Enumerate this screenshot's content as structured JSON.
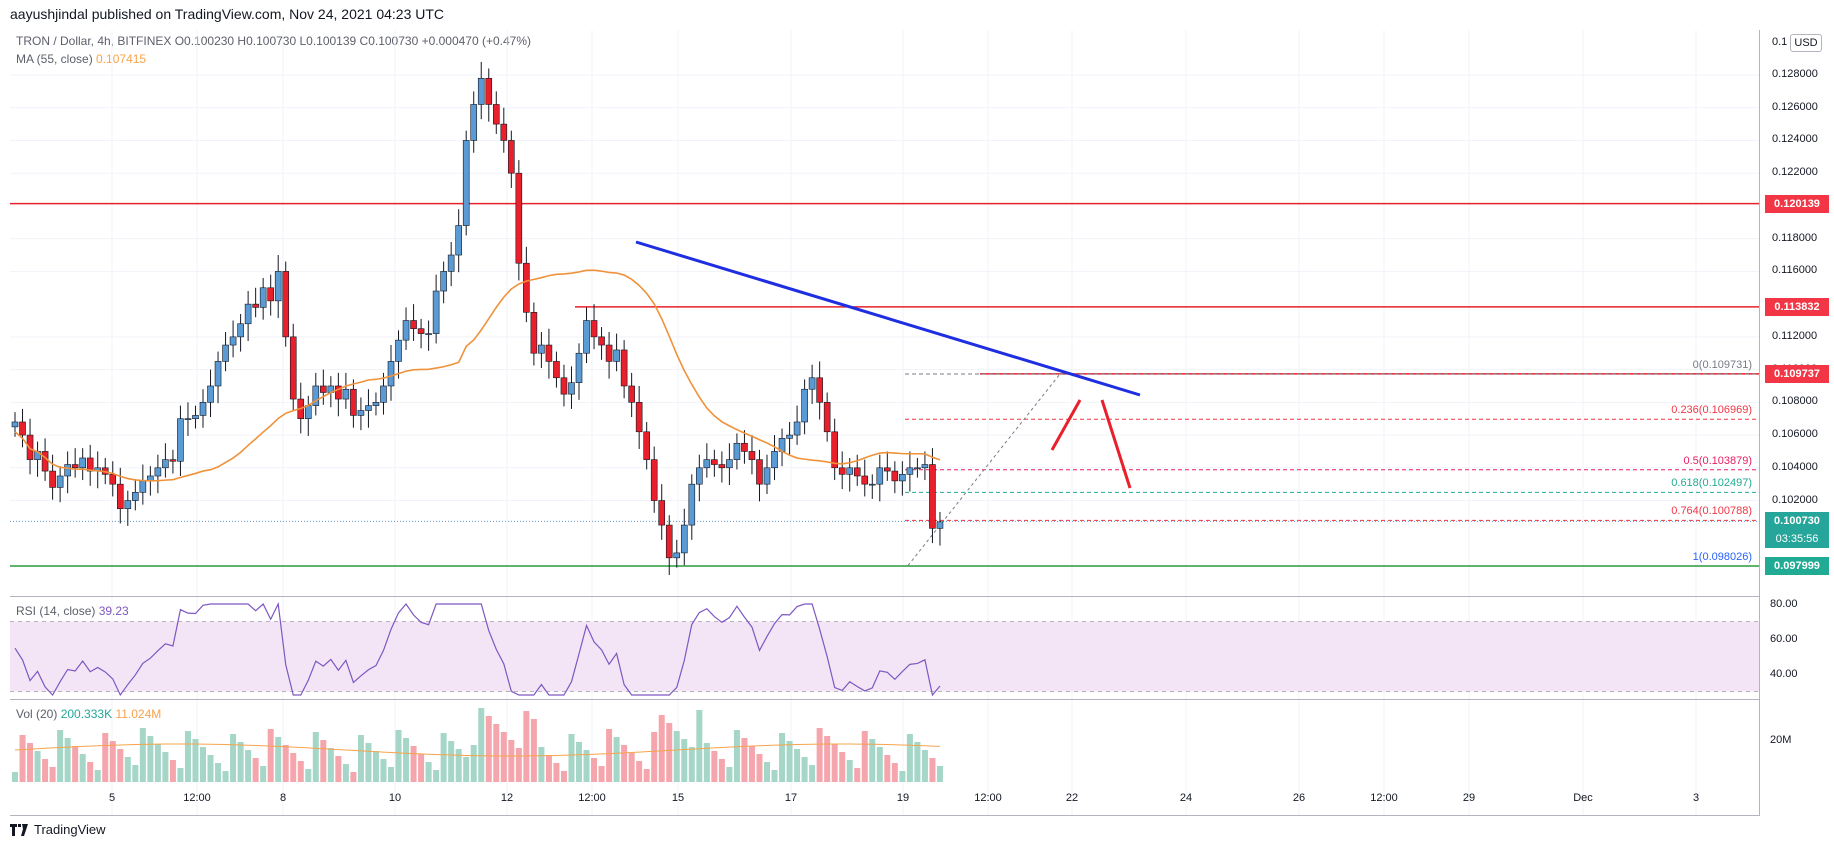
{
  "header": {
    "publish_line": "aayushjindal published on TradingView.com, Nov 24, 2021 04:23 UTC",
    "symbol_line": "TRON / Dollar, 4h, BITFINEX  O0.100230  H0.100730  L0.100139  C0.100730  +0.000470 (+0.47%)",
    "ma_label": "MA (55, close)",
    "ma_value": "0.107415",
    "currency": "USD"
  },
  "price_axis": {
    "ticks": [
      "0.128000",
      "0.126000",
      "0.124000",
      "0.122000",
      "0.118000",
      "0.116000",
      "0.112000",
      "0.110000",
      "0.108000",
      "0.106000",
      "0.104000",
      "0.102000"
    ],
    "top_tick": "0.1",
    "badges": [
      {
        "price": "0.120139",
        "color": "#f23645"
      },
      {
        "price": "0.113832",
        "color": "#f23645"
      },
      {
        "price": "0.109737",
        "color": "#f23645"
      },
      {
        "price": "0.100730",
        "color": "#26a69a",
        "sub": "03:35:56"
      },
      {
        "price": "0.097999",
        "color": "#22ab94"
      }
    ]
  },
  "fib_levels": [
    {
      "label": "0(0.109731)",
      "price": 0.109731,
      "color": "#787b86"
    },
    {
      "label": "0.236(0.106969)",
      "price": 0.106969,
      "color": "#f23645"
    },
    {
      "label": "0.5(0.103879)",
      "price": 0.103879,
      "color": "#e91e63"
    },
    {
      "label": "0.618(0.102497)",
      "price": 0.102497,
      "color": "#22ab94"
    },
    {
      "label": "0.764(0.100788)",
      "price": 0.100788,
      "color": "#f23645"
    },
    {
      "label": "1(0.098026)",
      "price": 0.098026,
      "color": "#2962ff"
    }
  ],
  "rsi": {
    "label": "RSI (14, close)",
    "value": "39.23",
    "ticks": [
      "80.00",
      "60.00",
      "40.00"
    ]
  },
  "volume": {
    "label": "Vol (20)",
    "value1": "200.333K",
    "value2": "11.024M",
    "tick": "20M"
  },
  "time_axis": [
    {
      "label": "5"
    },
    {
      "label": "12:00"
    },
    {
      "label": "8"
    },
    {
      "label": "10"
    },
    {
      "label": "12"
    },
    {
      "label": "12:00"
    },
    {
      "label": "15"
    },
    {
      "label": "17"
    },
    {
      "label": "19"
    },
    {
      "label": "12:00"
    },
    {
      "label": "22"
    },
    {
      "label": "24"
    },
    {
      "label": "26"
    },
    {
      "label": "12:00"
    },
    {
      "label": "29"
    },
    {
      "label": "Dec"
    },
    {
      "label": "3"
    }
  ],
  "footer": {
    "brand": "TradingView"
  },
  "colors": {
    "up": "#5b9bd5",
    "down": "#e8202c",
    "ma": "#f0923a",
    "trend": "#1f2ee0",
    "support": "#2a9a3a"
  }
}
